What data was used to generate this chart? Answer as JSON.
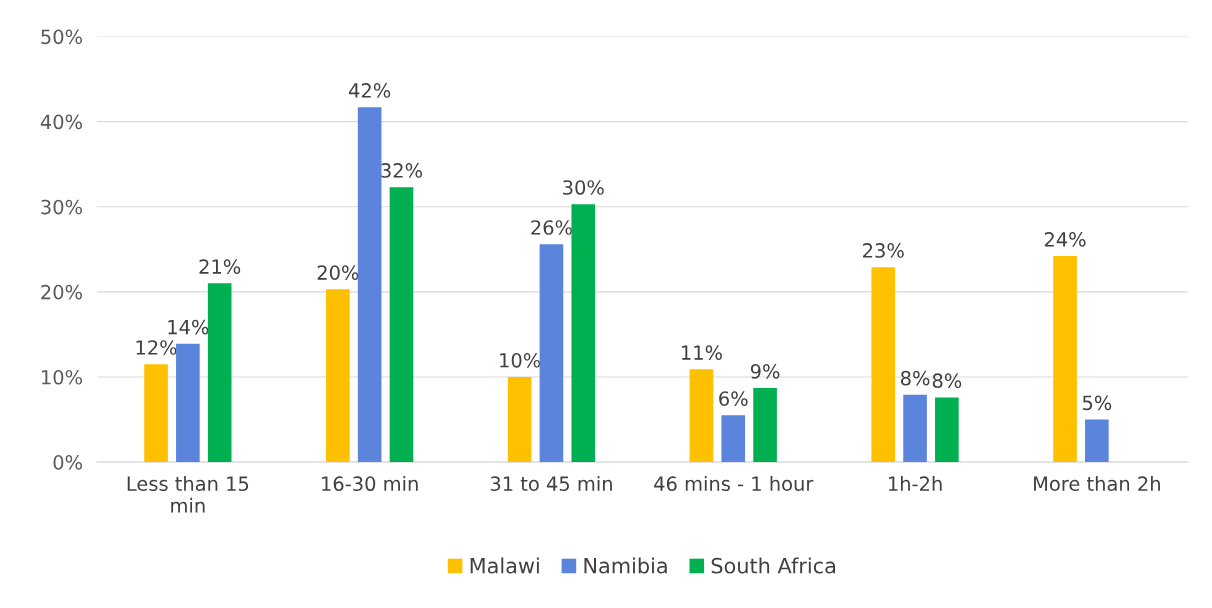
{
  "chart_data": {
    "type": "bar",
    "categories": [
      "Less than 15 min",
      "16-30 min",
      "31 to 45 min",
      "46 mins - 1 hour",
      "1h-2h",
      "More than 2h"
    ],
    "series": [
      {
        "name": "Malawi",
        "color": "#ffc000",
        "values": [
          11.5,
          20.3,
          10.0,
          10.9,
          22.9,
          24.2
        ],
        "value_labels": [
          "12%",
          "20%",
          "10%",
          "11%",
          "23%",
          "24%"
        ]
      },
      {
        "name": "Namibia",
        "color": "#5b84dc",
        "values": [
          13.9,
          41.7,
          25.6,
          5.5,
          7.9,
          5.0
        ],
        "value_labels": [
          "14%",
          "42%",
          "26%",
          "6%",
          "8%",
          "5%"
        ]
      },
      {
        "name": "South Africa",
        "color": "#00b050",
        "values": [
          21.0,
          32.3,
          30.3,
          8.7,
          7.6,
          null
        ],
        "value_labels": [
          "21%",
          "32%",
          "30%",
          "9%",
          "8%",
          null
        ]
      }
    ],
    "ylim": [
      0,
      50
    ],
    "yticks": [
      {
        "value": 0,
        "label": "0%"
      },
      {
        "value": 10,
        "label": "10%"
      },
      {
        "value": 20,
        "label": "20%"
      },
      {
        "value": 30,
        "label": "30%"
      },
      {
        "value": 40,
        "label": "40%"
      },
      {
        "value": 50,
        "label": "50%"
      }
    ],
    "grid": "y",
    "legend": "bottom"
  }
}
